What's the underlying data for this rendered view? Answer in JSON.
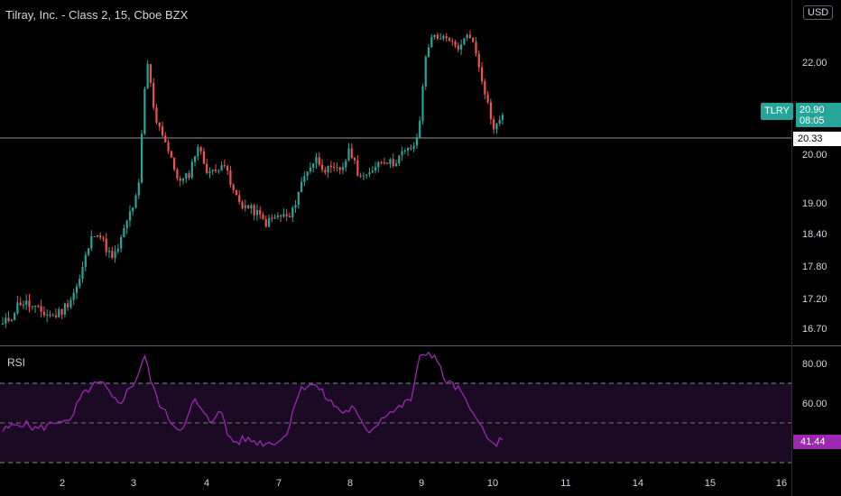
{
  "header": {
    "title": "Tilray, Inc. - Class 2, 15, Cboe BZX"
  },
  "currency": {
    "label": "USD"
  },
  "ticker_badge": {
    "label": "TLRY"
  },
  "last_price": {
    "value": "20.90",
    "countdown": "08:05"
  },
  "crosshair": {
    "price": "20.33"
  },
  "rsi": {
    "label": "RSI",
    "value": "41.44"
  },
  "colors": {
    "up": "#26a69a",
    "down": "#ef5350",
    "rsi_line": "#9c27b0",
    "rsi_band": "#1a0a24",
    "grid": "#555555"
  },
  "chart_data": {
    "type": "candlestick",
    "price_axis": {
      "ticks": [
        "22.00",
        "20.00",
        "19.00",
        "18.40",
        "17.80",
        "17.20",
        "16.70"
      ]
    },
    "rsi_axis": {
      "ticks": [
        "80.00",
        "60.00",
        "40.00"
      ],
      "bands": [
        70,
        50,
        30
      ]
    },
    "x_ticks": [
      "2",
      "3",
      "4",
      "7",
      "8",
      "9",
      "10",
      "11",
      "14",
      "15",
      "16"
    ],
    "price_waypoints": [
      16.75,
      16.9,
      17.15,
      17.1,
      17.0,
      16.95,
      16.9,
      17.0,
      17.2,
      17.5,
      18.1,
      18.5,
      18.2,
      17.9,
      18.3,
      18.8,
      19.2,
      22.1,
      20.8,
      20.4,
      19.8,
      19.4,
      19.6,
      20.2,
      19.7,
      19.6,
      19.9,
      19.3,
      19.0,
      18.9,
      18.8,
      18.6,
      18.7,
      18.75,
      18.7,
      19.3,
      19.7,
      19.9,
      19.7,
      19.65,
      19.7,
      20.1,
      19.6,
      19.5,
      19.8,
      19.9,
      19.8,
      20.0,
      20.1,
      20.3,
      22.3,
      22.6,
      22.5,
      22.4,
      22.3,
      22.7,
      22.1,
      21.3,
      20.5,
      20.9
    ],
    "rsi_waypoints": [
      46,
      48,
      50,
      49,
      47,
      48,
      50,
      52,
      49,
      60,
      66,
      69,
      70,
      63,
      60,
      66,
      72,
      84,
      68,
      58,
      52,
      47,
      50,
      62,
      55,
      50,
      58,
      44,
      40,
      42,
      41,
      40,
      40,
      41,
      43,
      60,
      68,
      70,
      67,
      62,
      58,
      55,
      58,
      50,
      46,
      50,
      55,
      56,
      59,
      62,
      82,
      86,
      83,
      72,
      69,
      66,
      56,
      54,
      42,
      39,
      41.44
    ]
  }
}
